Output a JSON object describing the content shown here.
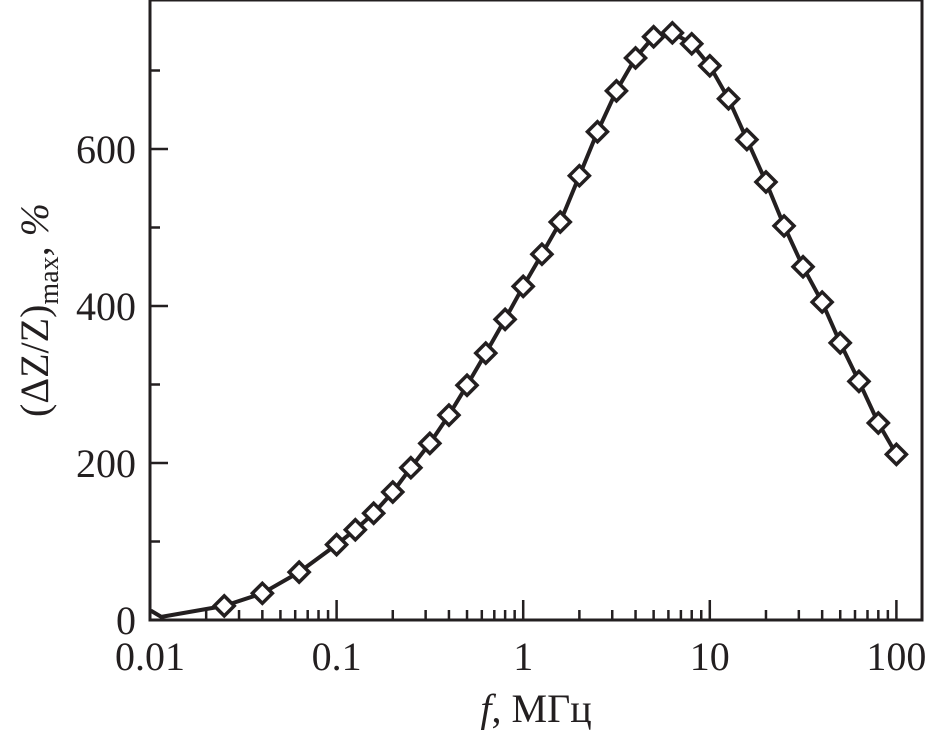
{
  "chart_data": {
    "type": "line",
    "title": "",
    "xlabel": "f, МГц",
    "xlabel_italic_part": "f",
    "xlabel_rest": ", МГц",
    "ylabel": "(ΔZ/Z)max, %",
    "ylabel_main": "(ΔZ/Z)",
    "ylabel_sub": "max",
    "ylabel_tail": ", %",
    "xscale": "log",
    "xlim": [
      0.01,
      140
    ],
    "ylim": [
      0,
      790
    ],
    "xticks": [
      0.01,
      0.1,
      1,
      10,
      100
    ],
    "xtick_labels": [
      "0.01",
      "0.1",
      "1",
      "10",
      "100"
    ],
    "yticks": [
      0,
      200,
      400,
      600
    ],
    "ytick_labels": [
      "0",
      "200",
      "400",
      "600"
    ],
    "grid": false,
    "marker": "open-diamond",
    "line_color": "#231f20",
    "series": [
      {
        "name": "ΔZ/Z",
        "line_only": {
          "x": [
            0.0101,
            0.0115
          ],
          "y": [
            12,
            4
          ]
        },
        "x": [
          0.025,
          0.04,
          0.063,
          0.1,
          0.126,
          0.158,
          0.2,
          0.25,
          0.316,
          0.4,
          0.5,
          0.63,
          0.8,
          1,
          1.26,
          1.58,
          2,
          2.5,
          3.16,
          4,
          5,
          6.3,
          8,
          10,
          12.6,
          15.8,
          20,
          25,
          31.6,
          40,
          50,
          63,
          80,
          100
        ],
        "y": [
          18,
          34,
          61,
          96,
          115,
          136,
          163,
          194,
          225,
          261,
          299,
          340,
          383,
          425,
          466,
          507,
          566,
          622,
          674,
          716,
          743,
          748,
          734,
          706,
          664,
          612,
          558,
          502,
          450,
          405,
          353,
          304,
          251,
          211
        ]
      }
    ]
  }
}
